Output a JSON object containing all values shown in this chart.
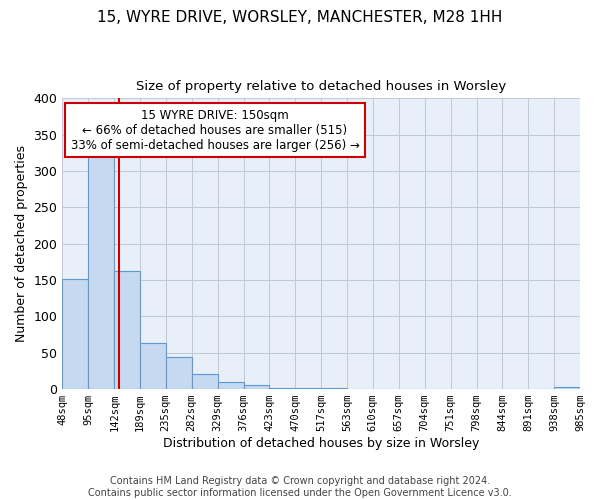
{
  "title1": "15, WYRE DRIVE, WORSLEY, MANCHESTER, M28 1HH",
  "title2": "Size of property relative to detached houses in Worsley",
  "xlabel": "Distribution of detached houses by size in Worsley",
  "ylabel": "Number of detached properties",
  "bar_color": "#c5d9f0",
  "bar_edge_color": "#5b9bd5",
  "background_color": "#e8eff8",
  "grid_color": "#c0c8d8",
  "bin_edges": [
    48,
    95,
    142,
    189,
    235,
    282,
    329,
    376,
    423,
    470,
    517,
    563,
    610,
    657,
    704,
    751,
    798,
    844,
    891,
    938,
    985
  ],
  "bin_labels": [
    "48sqm",
    "95sqm",
    "142sqm",
    "189sqm",
    "235sqm",
    "282sqm",
    "329sqm",
    "376sqm",
    "423sqm",
    "470sqm",
    "517sqm",
    "563sqm",
    "610sqm",
    "657sqm",
    "704sqm",
    "751sqm",
    "798sqm",
    "844sqm",
    "891sqm",
    "938sqm",
    "985sqm"
  ],
  "counts": [
    152,
    328,
    163,
    63,
    44,
    21,
    10,
    5,
    2,
    1,
    1,
    0,
    0,
    0,
    0,
    0,
    0,
    0,
    0,
    3
  ],
  "property_size": 150,
  "vline_color": "#cc0000",
  "annotation_text": "15 WYRE DRIVE: 150sqm\n← 66% of detached houses are smaller (515)\n33% of semi-detached houses are larger (256) →",
  "annotation_box_color": "white",
  "annotation_box_edge": "#cc0000",
  "ylim": [
    0,
    400
  ],
  "yticks": [
    0,
    50,
    100,
    150,
    200,
    250,
    300,
    350,
    400
  ],
  "footer": "Contains HM Land Registry data © Crown copyright and database right 2024.\nContains public sector information licensed under the Open Government Licence v3.0."
}
